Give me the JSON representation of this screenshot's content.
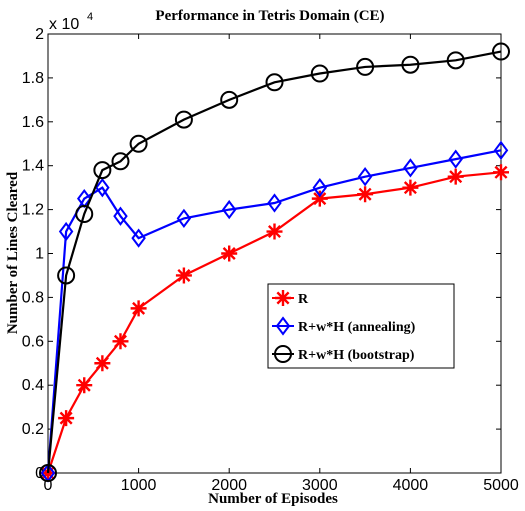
{
  "chart_data": {
    "type": "line",
    "title": "Performance in Tetris Domain (CE)",
    "xlabel": "Number of Episodes",
    "ylabel": "Number of Lines Cleared",
    "xlim": [
      0,
      5000
    ],
    "ylim": [
      0,
      2
    ],
    "y_multiplier": {
      "base": "x 10",
      "exponent": "4"
    },
    "x_ticks": [
      0,
      1000,
      2000,
      3000,
      4000,
      5000
    ],
    "x_tick_labels": [
      "0",
      "1000",
      "2000",
      "3000",
      "4000",
      "5000"
    ],
    "y_ticks": [
      0,
      0.2,
      0.4,
      0.6,
      0.8,
      1,
      1.2,
      1.4,
      1.6,
      1.8,
      2
    ],
    "y_tick_labels": [
      "0",
      "0.2",
      "0.4",
      "0.6",
      "0.8",
      "1",
      "1.2",
      "1.4",
      "1.6",
      "1.8",
      "2"
    ],
    "grid": false,
    "legend_position": "center-right",
    "series": [
      {
        "name": "R",
        "color": "#ff0000",
        "marker": "asterisk",
        "x": [
          0,
          200,
          400,
          600,
          800,
          1000,
          1500,
          2000,
          2500,
          3000,
          3500,
          4000,
          4500,
          5000
        ],
        "y": [
          0,
          0.25,
          0.4,
          0.5,
          0.6,
          0.75,
          0.9,
          1.0,
          1.1,
          1.25,
          1.27,
          1.3,
          1.35,
          1.37
        ]
      },
      {
        "name": "R+w*H (annealing)",
        "color": "#0000ff",
        "marker": "diamond",
        "x": [
          0,
          200,
          400,
          600,
          800,
          1000,
          1500,
          2000,
          2500,
          3000,
          3500,
          4000,
          4500,
          5000
        ],
        "y": [
          0,
          1.1,
          1.25,
          1.3,
          1.17,
          1.07,
          1.16,
          1.2,
          1.23,
          1.3,
          1.35,
          1.39,
          1.43,
          1.47
        ]
      },
      {
        "name": "R+w*H (bootstrap)",
        "color": "#000000",
        "marker": "circle",
        "x": [
          0,
          200,
          400,
          600,
          800,
          1000,
          1500,
          2000,
          2500,
          3000,
          3500,
          4000,
          4500,
          5000
        ],
        "y": [
          0,
          0.9,
          1.18,
          1.38,
          1.42,
          1.5,
          1.61,
          1.7,
          1.78,
          1.82,
          1.85,
          1.86,
          1.88,
          1.92
        ]
      }
    ]
  }
}
